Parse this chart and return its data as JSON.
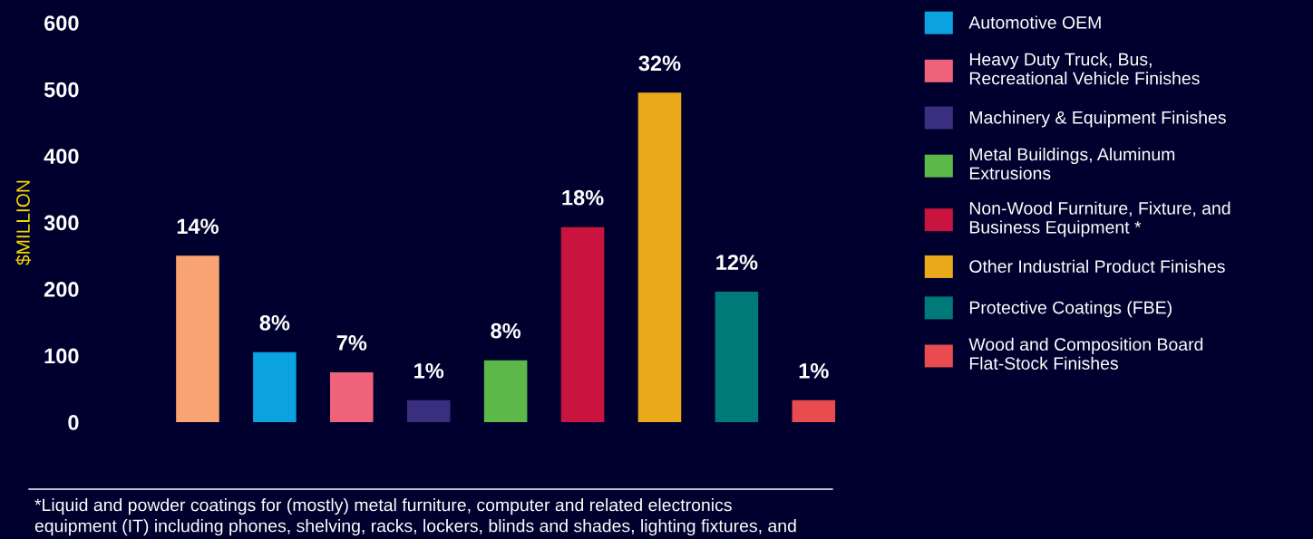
{
  "chart_data": {
    "type": "bar",
    "ylabel": "$MILLION",
    "categories": [
      null,
      null,
      null,
      null,
      null,
      null,
      null,
      null,
      null
    ],
    "series": [
      {
        "color": "#f9a472",
        "values": [
          250,
          null,
          null,
          null,
          null,
          null,
          null,
          null,
          null
        ]
      },
      {
        "name": "Automotive OEM",
        "color": "#0aa3e0",
        "values": [
          null,
          105,
          null,
          null,
          null,
          null,
          null,
          null,
          null
        ]
      },
      {
        "name": "Heavy Duty Truck, Bus,\nRecreational Vehicle Finishes",
        "color": "#f0617a",
        "values": [
          null,
          null,
          75,
          null,
          null,
          null,
          null,
          null,
          null
        ]
      },
      {
        "name": "Machinery & Equipment Finishes",
        "color": "#3a2f7e",
        "values": [
          null,
          null,
          null,
          33,
          null,
          null,
          null,
          null,
          null
        ]
      },
      {
        "name": "Metal Buildings, Aluminum\nExtrusions",
        "color": "#5cb848",
        "values": [
          null,
          null,
          null,
          null,
          93,
          null,
          null,
          null,
          null
        ]
      },
      {
        "name": "Non-Wood Furniture, Fixture, and\nBusiness Equipment *",
        "color": "#c8143f",
        "values": [
          null,
          null,
          null,
          null,
          null,
          293,
          null,
          null,
          null
        ]
      },
      {
        "name": "Other Industrial Product Finishes",
        "color": "#e9a91a",
        "values": [
          null,
          null,
          null,
          null,
          null,
          null,
          495,
          null,
          null
        ]
      },
      {
        "name": "Protective Coatings (FBE)",
        "color": "#007a78",
        "values": [
          null,
          null,
          null,
          null,
          null,
          null,
          null,
          196,
          null
        ]
      },
      {
        "name": "Wood and Composition Board\nFlat-Stock Finishes",
        "color": "#e84c4f",
        "values": [
          null,
          null,
          null,
          null,
          null,
          null,
          null,
          null,
          33
        ]
      }
    ],
    "ylim": [
      0,
      600
    ],
    "yticks": [
      0,
      100,
      200,
      300,
      400,
      500,
      600
    ],
    "legend": "right",
    "stacked": true,
    "annotations": [
      "14%",
      "8%",
      "7%",
      "1%",
      "8%",
      "18%",
      "32%",
      "12%",
      "1%",
      "*Liquid and powder coatings for (mostly) metal furniture, computer and related electronics\nequipment (IT) including phones, shelving, racks, lockers, blinds and shades, lighting fixtures, and"
    ]
  }
}
